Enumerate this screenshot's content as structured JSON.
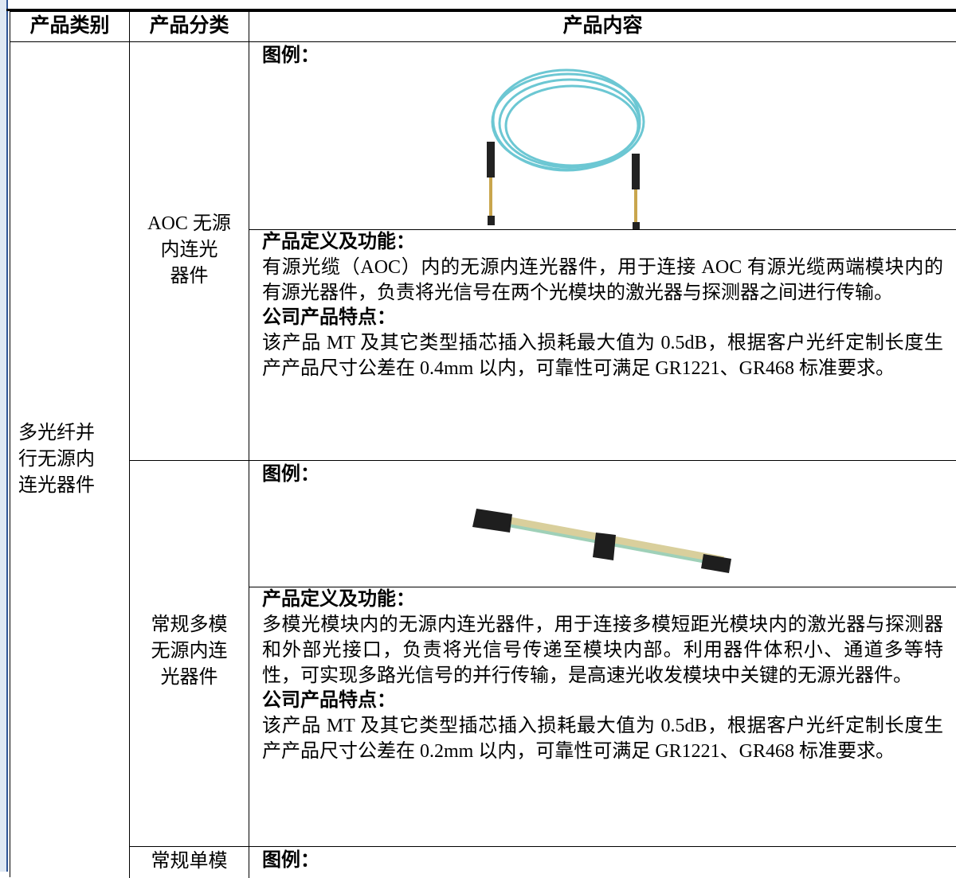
{
  "table": {
    "header": [
      "产品类别",
      "产品分类",
      "产品内容"
    ],
    "category": [
      "多光纤并",
      "行无源内",
      "连光器件"
    ],
    "rows": [
      {
        "subcategory": [
          "AOC 无源",
          "内连光",
          "器件"
        ],
        "figure_label": "图例：",
        "definition_label": "产品定义及功能：",
        "definition": "有源光缆（AOC）内的无源内连光器件，用于连接 AOC 有源光缆两端模块内的有源光器件，负责将光信号在两个光模块的激光器与探测器之间进行传输。",
        "features_label": "公司产品特点：",
        "features": "该产品 MT 及其它类型插芯插入损耗最大值为 0.5dB，根据客户光纤定制长度生产产品尺寸公差在 0.4mm 以内，可靠性可满足 GR1221、GR468 标准要求。"
      },
      {
        "subcategory": [
          "常规多模",
          "无源内连",
          "光器件"
        ],
        "figure_label": "图例：",
        "definition_label": "产品定义及功能：",
        "definition": "多模光模块内的无源内连光器件，用于连接多模短距光模块内的激光器与探测器和外部光接口，负责将光信号传递至模块内部。利用器件体积小、通道多等特性，可实现多路光信号的并行传输，是高速光收发模块中关键的无源光器件。",
        "features_label": "公司产品特点：",
        "features": "该产品 MT 及其它类型插芯插入损耗最大值为 0.5dB，根据客户光纤定制长度生产产品尺寸公差在 0.2mm 以内，可靠性可满足 GR1221、GR468 标准要求。"
      },
      {
        "subcategory": [
          "常规单模"
        ],
        "figure_label": "图例："
      }
    ]
  }
}
